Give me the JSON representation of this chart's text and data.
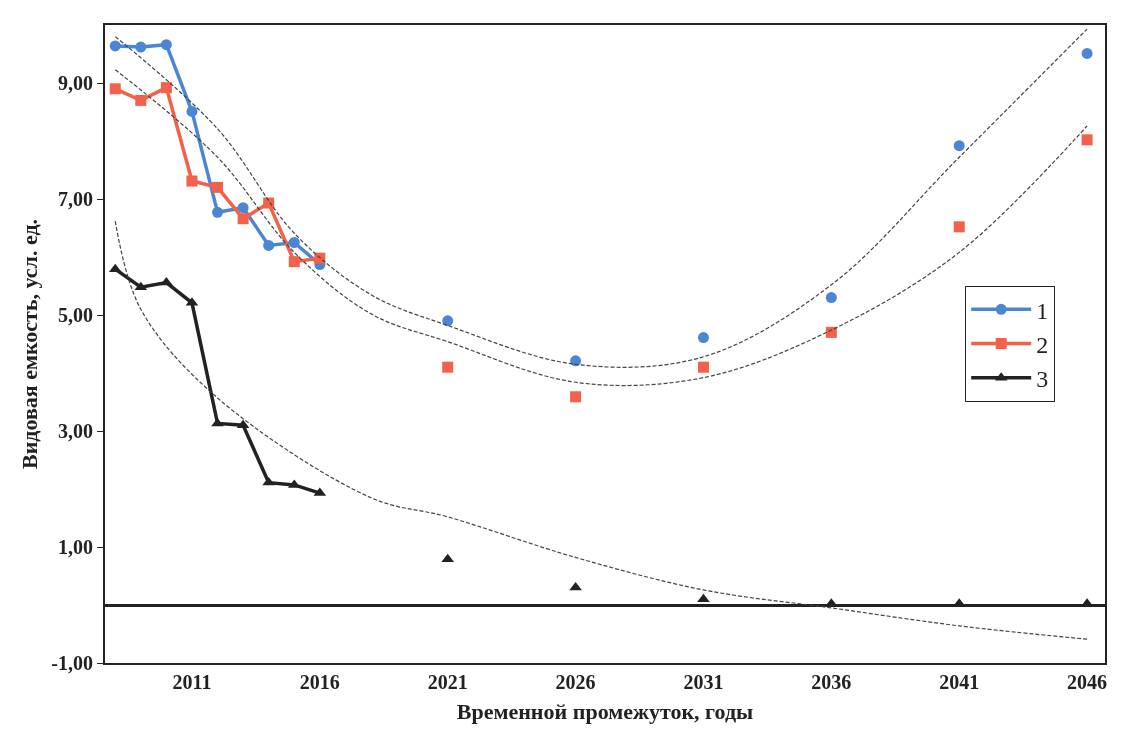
{
  "chart_data": {
    "type": "line",
    "xlabel": "Временной промежуток, годы",
    "ylabel": "Видовая емкость, усл. ед.",
    "xlim": [
      2007.6,
      2046.7
    ],
    "ylim": [
      -1,
      10
    ],
    "xticks": [
      2011,
      2016,
      2021,
      2026,
      2031,
      2036,
      2041,
      2046
    ],
    "yticks": [
      {
        "value": -1,
        "label": "-1,00"
      },
      {
        "value": 1,
        "label": "1,00"
      },
      {
        "value": 3,
        "label": "3,00"
      },
      {
        "value": 5,
        "label": "5,00"
      },
      {
        "value": 7,
        "label": "7,00"
      },
      {
        "value": 9,
        "label": "9,00"
      }
    ],
    "grid": false,
    "legend": "right",
    "line_style": "solid",
    "series": [
      {
        "name": "1",
        "color": "#4a86d4",
        "marker": "circle",
        "x": [
          2008,
          2009,
          2010,
          2011,
          2012,
          2013,
          2014,
          2015,
          2016
        ],
        "values": [
          9.64,
          9.62,
          9.66,
          8.51,
          6.77,
          6.85,
          6.2,
          6.25,
          5.87
        ]
      },
      {
        "name": "2",
        "color": "#f4614a",
        "marker": "square",
        "x": [
          2008,
          2009,
          2010,
          2011,
          2012,
          2013,
          2014,
          2015,
          2016
        ],
        "values": [
          8.9,
          8.7,
          8.92,
          7.31,
          7.2,
          6.66,
          6.93,
          5.92,
          5.98
        ]
      },
      {
        "name": "3",
        "color": "#222222",
        "marker": "triangle",
        "x": [
          2008,
          2009,
          2010,
          2011,
          2012,
          2013,
          2014,
          2015,
          2016
        ],
        "values": [
          5.79,
          5.48,
          5.56,
          5.21,
          3.13,
          3.1,
          2.11,
          2.07,
          1.93
        ]
      },
      {
        "color": "#4a86d4",
        "marker": "circle",
        "type": "scatter",
        "x": [
          2021,
          2026,
          2031,
          2036,
          2041,
          2046
        ],
        "values": [
          4.9,
          4.21,
          4.61,
          5.3,
          7.92,
          9.51
        ]
      },
      {
        "color": "#f4614a",
        "marker": "square",
        "type": "scatter",
        "x": [
          2021,
          2026,
          2031,
          2036,
          2041,
          2046
        ],
        "values": [
          4.1,
          3.59,
          4.1,
          4.7,
          6.52,
          8.02
        ]
      },
      {
        "color": "#222222",
        "marker": "triangle",
        "type": "scatter",
        "x": [
          2021,
          2026,
          2031,
          2036,
          2041,
          2046
        ],
        "values": [
          0.79,
          0.3,
          0.1,
          0.02,
          0.02,
          0.02
        ]
      },
      {
        "color": "#444444",
        "marker": "none",
        "type": "line",
        "line_style": "dashed",
        "x": [
          2008,
          2012,
          2015,
          2018,
          2021,
          2026,
          2031,
          2036,
          2041,
          2046
        ],
        "values": [
          9.8,
          8.21,
          6.41,
          5.35,
          4.82,
          4.15,
          4.28,
          5.52,
          7.72,
          9.93
        ]
      },
      {
        "color": "#444444",
        "marker": "none",
        "type": "line",
        "line_style": "dashed",
        "x": [
          2008,
          2012,
          2015,
          2018,
          2021,
          2026,
          2031,
          2036,
          2041,
          2046
        ],
        "values": [
          9.23,
          7.72,
          6.08,
          5.02,
          4.54,
          3.84,
          3.92,
          4.74,
          6.08,
          8.26
        ]
      },
      {
        "color": "#444444",
        "marker": "none",
        "type": "line",
        "line_style": "dashed",
        "x": [
          2008,
          2009,
          2012,
          2018,
          2021,
          2026,
          2031,
          2036,
          2041,
          2046
        ],
        "values": [
          6.62,
          5.1,
          3.57,
          1.85,
          1.52,
          0.82,
          0.26,
          -0.05,
          -0.36,
          -0.59
        ]
      }
    ]
  }
}
